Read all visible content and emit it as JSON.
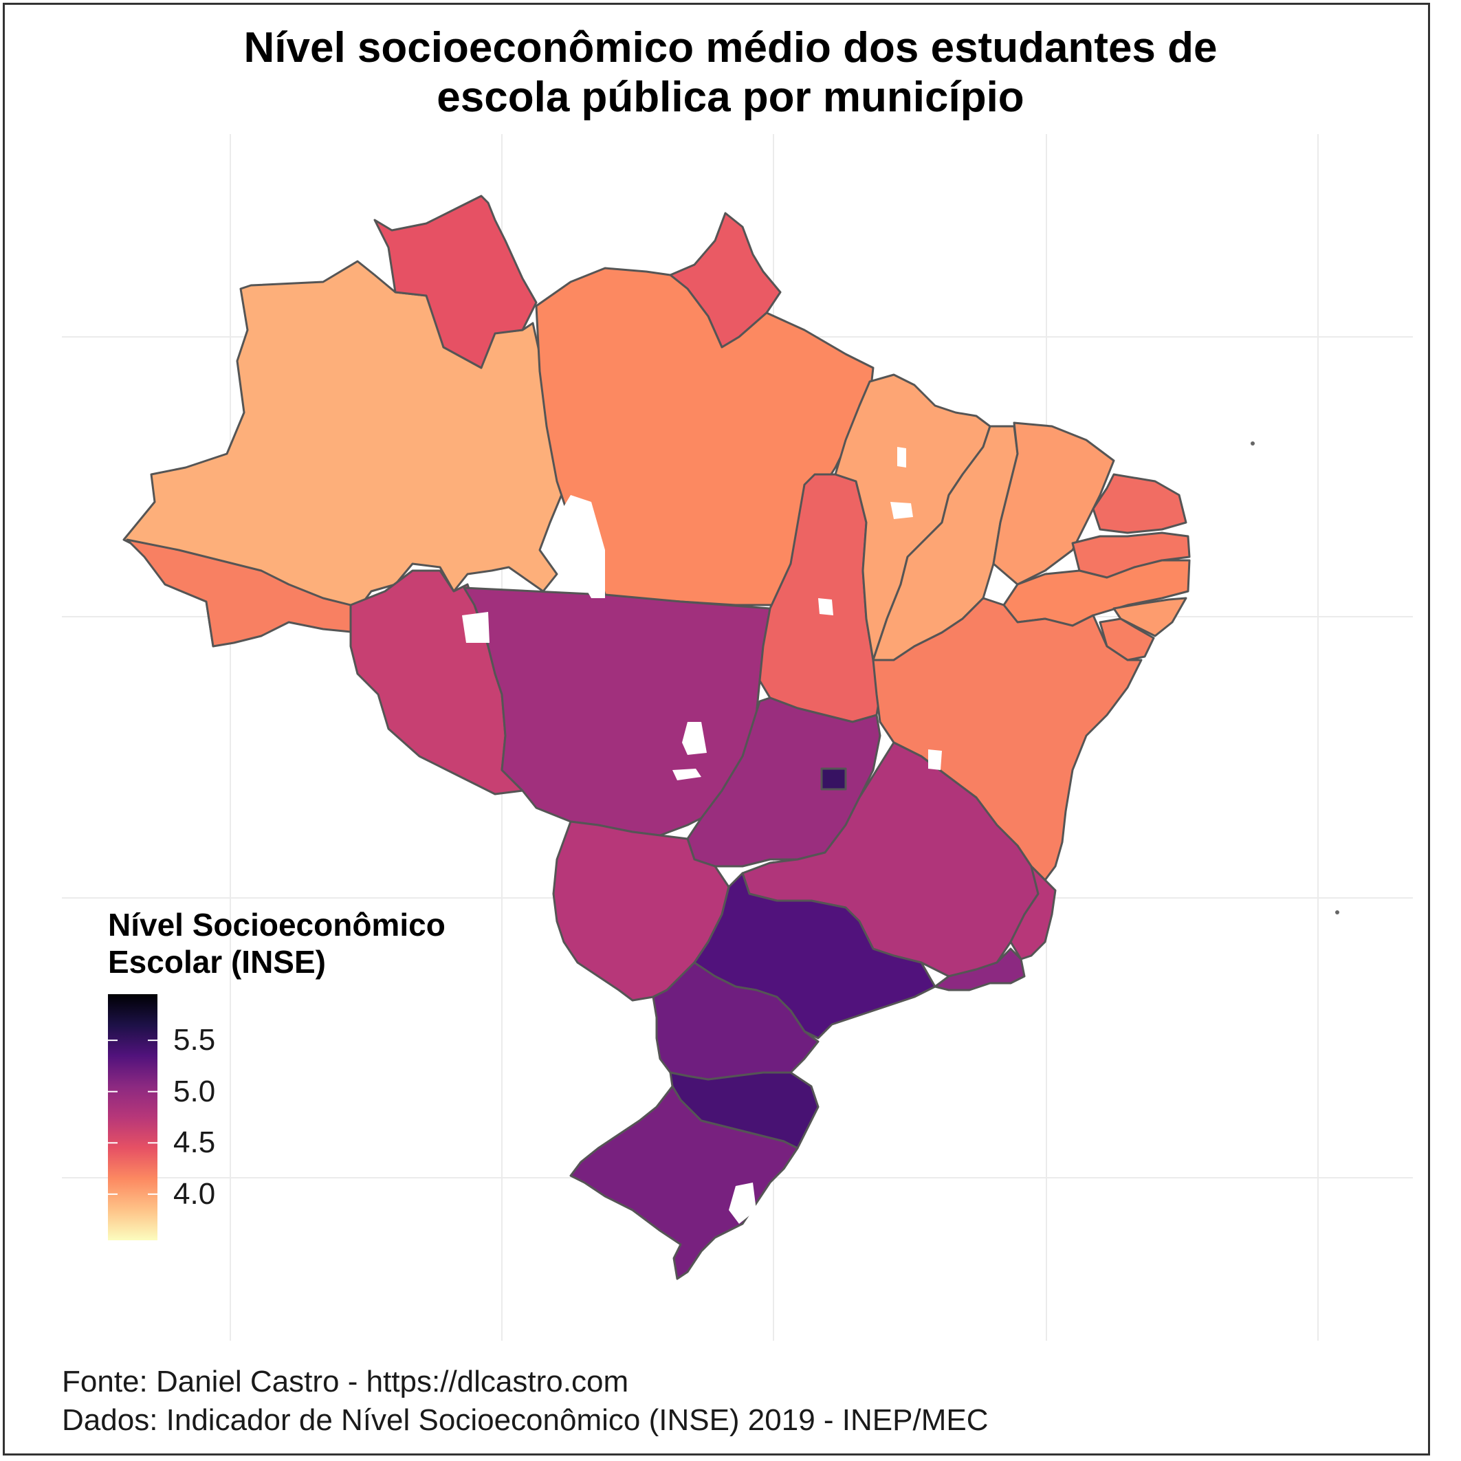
{
  "title": {
    "line1": "Nível socioeconômico médio dos estudantes de",
    "line2": "escola pública por município"
  },
  "legend": {
    "title_line1": "Nível Socioeconômico",
    "title_line2": "Escolar (INSE)",
    "ticks": [
      "5.5",
      "5.0",
      "4.5",
      "4.0"
    ],
    "scale_min": 3.55,
    "scale_max": 5.95,
    "palette": [
      "#fcfdbf",
      "#fec287",
      "#fc8961",
      "#e65164",
      "#b73779",
      "#8c2981",
      "#51127c",
      "#1d1147",
      "#000004"
    ]
  },
  "caption": {
    "line1": "Fonte: Daniel Castro - https://dlcastro.com",
    "line2": "Dados: Indicador de Nível Socioeconômico (INSE) 2019 - INEP/MEC"
  },
  "regions": [
    {
      "name": "AM",
      "value": 3.95
    },
    {
      "name": "RR",
      "value": 4.45
    },
    {
      "name": "AP",
      "value": 4.4
    },
    {
      "name": "PA",
      "value": 4.15
    },
    {
      "name": "AC",
      "value": 4.2
    },
    {
      "name": "RO",
      "value": 4.65
    },
    {
      "name": "MT",
      "value": 4.9
    },
    {
      "name": "TO",
      "value": 4.35
    },
    {
      "name": "MA",
      "value": 4.0
    },
    {
      "name": "PI",
      "value": 4.0
    },
    {
      "name": "CE",
      "value": 4.05
    },
    {
      "name": "RN",
      "value": 4.3
    },
    {
      "name": "PB",
      "value": 4.25
    },
    {
      "name": "PE",
      "value": 4.15
    },
    {
      "name": "AL",
      "value": 4.05
    },
    {
      "name": "SE",
      "value": 4.2
    },
    {
      "name": "BA",
      "value": 4.2
    },
    {
      "name": "GO",
      "value": 4.95
    },
    {
      "name": "DF",
      "value": 5.5
    },
    {
      "name": "MG",
      "value": 4.8
    },
    {
      "name": "ES",
      "value": 4.75
    },
    {
      "name": "RJ",
      "value": 5.05
    },
    {
      "name": "MS",
      "value": 4.75
    },
    {
      "name": "SP",
      "value": 5.35
    },
    {
      "name": "PR",
      "value": 5.2
    },
    {
      "name": "SC",
      "value": 5.4
    },
    {
      "name": "RS",
      "value": 5.15
    }
  ]
}
